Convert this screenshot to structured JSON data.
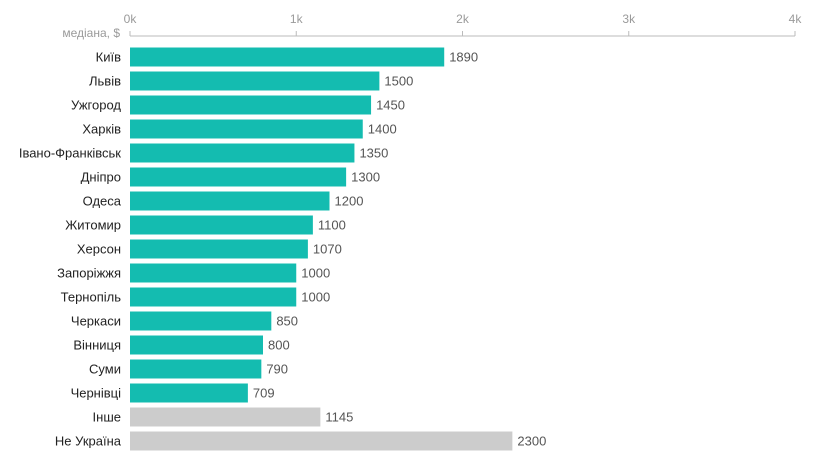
{
  "chart_data": {
    "type": "bar",
    "orientation": "horizontal",
    "title": "",
    "xlabel": "",
    "ylabel": "",
    "axis_caption": "медіана, $",
    "xlim": [
      0,
      4000
    ],
    "x_ticks": [
      0,
      1000,
      2000,
      3000,
      4000
    ],
    "x_tick_labels": [
      "0k",
      "1k",
      "2k",
      "3k",
      "4k"
    ],
    "grid": false,
    "legend": "none",
    "categories": [
      "Київ",
      "Львів",
      "Ужгород",
      "Харків",
      "Івано-Франківськ",
      "Дніпро",
      "Одеса",
      "Житомир",
      "Херсон",
      "Запоріжжя",
      "Тернопіль",
      "Черкаси",
      "Вінниця",
      "Суми",
      "Чернівці",
      "Інше",
      "Не Україна"
    ],
    "values": [
      1890,
      1500,
      1450,
      1400,
      1350,
      1300,
      1200,
      1100,
      1070,
      1000,
      1000,
      850,
      800,
      790,
      709,
      1145,
      2300
    ],
    "bar_colors": [
      "#14bcb0",
      "#14bcb0",
      "#14bcb0",
      "#14bcb0",
      "#14bcb0",
      "#14bcb0",
      "#14bcb0",
      "#14bcb0",
      "#14bcb0",
      "#14bcb0",
      "#14bcb0",
      "#14bcb0",
      "#14bcb0",
      "#14bcb0",
      "#14bcb0",
      "#cccccc",
      "#cccccc"
    ],
    "colors": {
      "primary": "#14bcb0",
      "other": "#cccccc",
      "axis": "#bbbbbb",
      "tick_text": "#9a9a9a",
      "category_text": "#222222",
      "value_text": "#555555"
    }
  }
}
